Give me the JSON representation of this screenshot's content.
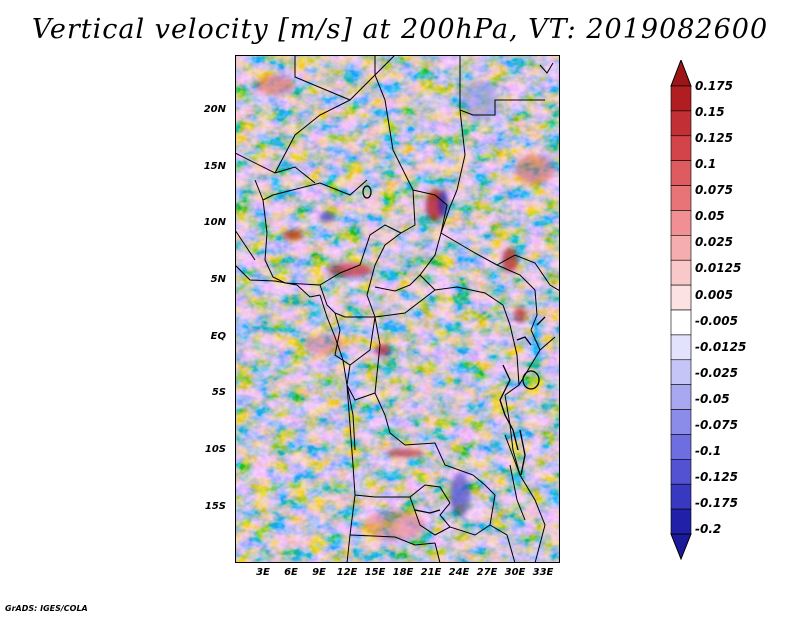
{
  "title": "Vertical velocity [m/s] at 200hPa, VT: 2019082600",
  "credit": "GrADS: IGES/COLA",
  "map": {
    "lat_range": [
      -19.5,
      24.5
    ],
    "lon_range": [
      0,
      35
    ],
    "lat_ticks": [
      {
        "label": "20N"
      },
      {
        "label": "15N"
      },
      {
        "label": "10N"
      },
      {
        "label": "5N"
      },
      {
        "label": "EQ"
      },
      {
        "label": "5S"
      },
      {
        "label": "10S"
      },
      {
        "label": "15S"
      }
    ],
    "lon_ticks": [
      {
        "label": "3E"
      },
      {
        "label": "6E"
      },
      {
        "label": "9E"
      },
      {
        "label": "12E"
      },
      {
        "label": "15E"
      },
      {
        "label": "18E"
      },
      {
        "label": "21E"
      },
      {
        "label": "24E"
      },
      {
        "label": "27E"
      },
      {
        "label": "30E"
      },
      {
        "label": "33E"
      }
    ]
  },
  "colorbar": {
    "levels": [
      {
        "label": "0.175",
        "color": "#b01e22"
      },
      {
        "label": "0.15",
        "color": "#c23035"
      },
      {
        "label": "0.125",
        "color": "#d2444a"
      },
      {
        "label": "0.1",
        "color": "#de5b60"
      },
      {
        "label": "0.075",
        "color": "#e87478"
      },
      {
        "label": "0.05",
        "color": "#f09094"
      },
      {
        "label": "0.025",
        "color": "#f5adaf"
      },
      {
        "label": "0.0125",
        "color": "#f9c8c9"
      },
      {
        "label": "0.005",
        "color": "#fce2e2"
      },
      {
        "label": "-0.005",
        "color": "#ffffff"
      },
      {
        "label": "-0.0125",
        "color": "#e2e2fc"
      },
      {
        "label": "-0.025",
        "color": "#c5c5f7"
      },
      {
        "label": "-0.05",
        "color": "#a8a8f1"
      },
      {
        "label": "-0.075",
        "color": "#8b8be9"
      },
      {
        "label": "-0.1",
        "color": "#6e6ee0"
      },
      {
        "label": "-0.125",
        "color": "#5252d2"
      },
      {
        "label": "-0.175",
        "color": "#3838c0"
      },
      {
        "label": "-0.2",
        "color": "#2020a8"
      }
    ],
    "top_color": "#9e1518",
    "bottom_color": "#1a1a9a"
  }
}
